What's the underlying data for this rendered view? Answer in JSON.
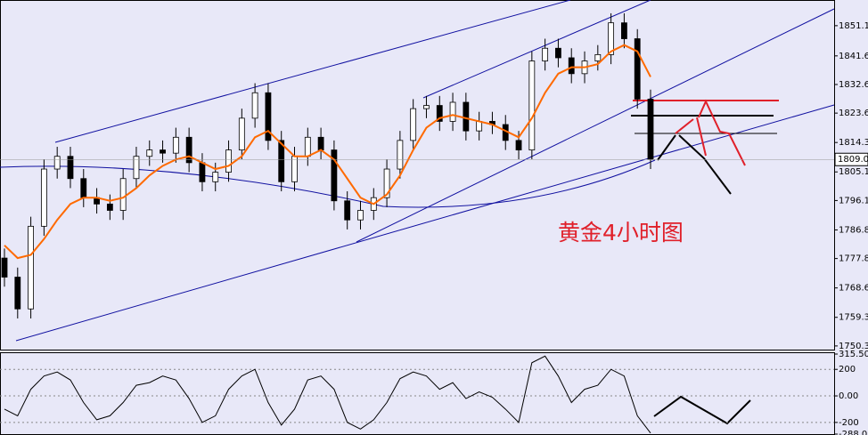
{
  "chart_data": [
    {
      "type": "candlestick",
      "annotation": "黄金4小时图",
      "open": [
        1778,
        1772,
        1762,
        1788,
        1806,
        1810,
        1803,
        1797,
        1795,
        1793,
        1803,
        1810,
        1812,
        1811,
        1816,
        1808,
        1802,
        1805,
        1812,
        1822,
        1830,
        1815,
        1802,
        1810,
        1816,
        1812,
        1796,
        1790,
        1793,
        1797,
        1806,
        1815,
        1825,
        1826,
        1821,
        1827,
        1818,
        1821,
        1820,
        1815,
        1812,
        1840,
        1844,
        1841,
        1836,
        1840,
        1842,
        1852,
        1847,
        1828
      ],
      "high": [
        1781,
        1775,
        1791,
        1809,
        1813,
        1813,
        1806,
        1800,
        1798,
        1806,
        1813,
        1815,
        1815,
        1819,
        1819,
        1811,
        1808,
        1815,
        1825,
        1833,
        1833,
        1818,
        1813,
        1819,
        1819,
        1815,
        1799,
        1796,
        1800,
        1809,
        1818,
        1828,
        1829,
        1829,
        1830,
        1830,
        1824,
        1824,
        1823,
        1818,
        1843,
        1847,
        1847,
        1844,
        1843,
        1845,
        1855,
        1855,
        1850,
        1831
      ],
      "low": [
        1769,
        1759,
        1759,
        1785,
        1803,
        1800,
        1794,
        1792,
        1790,
        1790,
        1800,
        1807,
        1808,
        1808,
        1805,
        1799,
        1799,
        1802,
        1809,
        1819,
        1812,
        1799,
        1799,
        1807,
        1809,
        1793,
        1787,
        1787,
        1790,
        1794,
        1803,
        1812,
        1822,
        1818,
        1818,
        1815,
        1815,
        1817,
        1812,
        1809,
        1809,
        1837,
        1838,
        1833,
        1833,
        1837,
        1839,
        1844,
        1825,
        1806
      ],
      "close": [
        1772,
        1762,
        1788,
        1806,
        1810,
        1803,
        1797,
        1795,
        1793,
        1803,
        1810,
        1812,
        1811,
        1816,
        1808,
        1802,
        1805,
        1812,
        1822,
        1830,
        1815,
        1802,
        1810,
        1816,
        1812,
        1796,
        1790,
        1793,
        1797,
        1806,
        1815,
        1825,
        1826,
        1821,
        1827,
        1818,
        1821,
        1820,
        1815,
        1812,
        1840,
        1844,
        1841,
        1836,
        1840,
        1842,
        1852,
        1847,
        1828,
        1809
      ],
      "ma": {
        "color": "#ff6a00",
        "values": [
          1782,
          1778,
          1779,
          1784,
          1790,
          1795,
          1797,
          1797,
          1796,
          1797,
          1800,
          1804,
          1807,
          1809,
          1810,
          1808,
          1806,
          1807,
          1810,
          1816,
          1818,
          1814,
          1810,
          1810,
          1812,
          1809,
          1803,
          1797,
          1795,
          1798,
          1804,
          1812,
          1819,
          1822,
          1823,
          1822,
          1821,
          1820,
          1818,
          1816,
          1822,
          1830,
          1836,
          1838,
          1838,
          1839,
          1843,
          1845,
          1843,
          1835
        ]
      },
      "last_price": 1809.02,
      "ylim": [
        1749.2,
        1858.9
      ],
      "yticks": [
        {
          "value": 1851.1,
          "label": "1851.10"
        },
        {
          "value": 1841.6,
          "label": "1841.60"
        },
        {
          "value": 1832.6,
          "label": "1832.60"
        },
        {
          "value": 1823.6,
          "label": "1823.60"
        },
        1814.35,
        {
          "value": 1805.1,
          "label": "1805.10"
        },
        {
          "value": 1796.1,
          "label": "1796.10"
        },
        1786.85,
        1777.85,
        {
          "value": 1768.6,
          "label": "1768.60"
        },
        1759.35,
        1750.35
      ]
    },
    {
      "type": "line",
      "color": "#000000",
      "values": [
        -100,
        -150,
        50,
        150,
        180,
        120,
        -50,
        -180,
        -150,
        -50,
        80,
        100,
        150,
        120,
        -20,
        -200,
        -150,
        50,
        150,
        200,
        -50,
        -220,
        -100,
        120,
        150,
        50,
        -200,
        -250,
        -180,
        -50,
        130,
        180,
        150,
        50,
        100,
        -20,
        30,
        -10,
        -100,
        -200,
        250,
        300,
        150,
        -50,
        50,
        80,
        200,
        150,
        -150,
        -280
      ],
      "ylim": [
        -288.079,
        315.5069
      ],
      "yticks": [
        315.5069,
        200,
        {
          "value": 0,
          "label": "0.00"
        },
        -200,
        -288.079
      ]
    }
  ]
}
